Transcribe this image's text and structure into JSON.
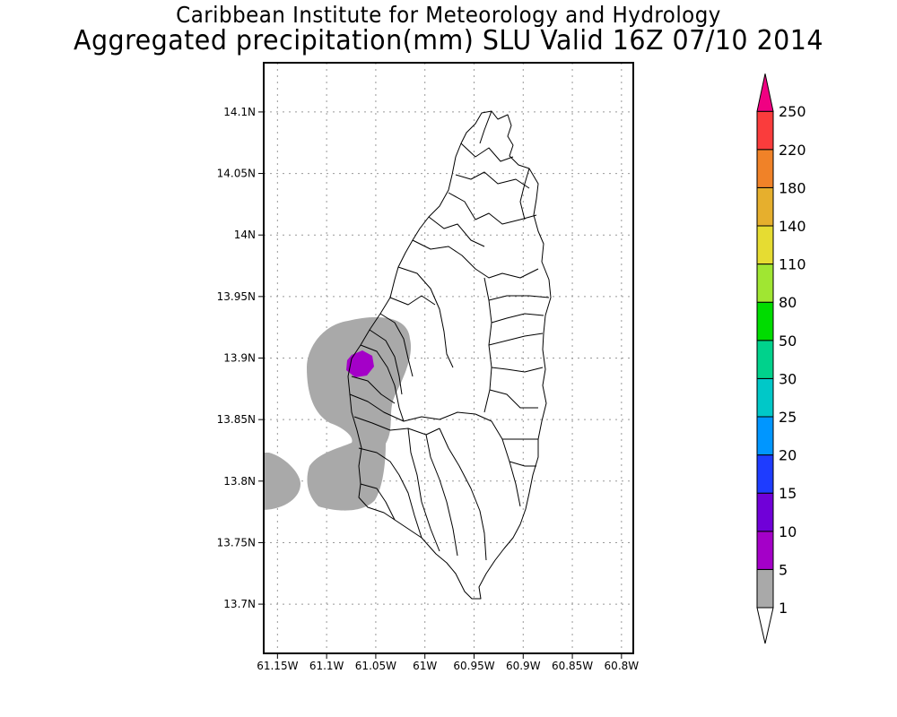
{
  "title": {
    "line1": "Caribbean Institute for Meteorology and Hydrology",
    "line2": "Aggregated precipitation(mm) SLU Valid 16Z 07/10 2014"
  },
  "map": {
    "lat_labels": [
      "14.1N",
      "14.05N",
      "14N",
      "13.95N",
      "13.9N",
      "13.85N",
      "13.8N",
      "13.75N",
      "13.7N"
    ],
    "lon_labels": [
      "61.15W",
      "61.1W",
      "61.05W",
      "61W",
      "60.95W",
      "60.9W",
      "60.85W",
      "60.8W"
    ],
    "lat_values": [
      14.1,
      14.05,
      14.0,
      13.95,
      13.9,
      13.85,
      13.8,
      13.75,
      13.7
    ],
    "lon_values": [
      -61.15,
      -61.1,
      -61.05,
      -61.0,
      -60.95,
      -60.9,
      -60.85,
      -60.8
    ],
    "lat_range": [
      13.66,
      14.14
    ],
    "lon_range": [
      -61.164,
      -60.788
    ],
    "grid": true,
    "precip_areas": [
      {
        "class": "1-5 mm",
        "color": "#a9a9a9",
        "location": "west coast, approx. 13.79N-13.94N, 61.10W-61.03W"
      },
      {
        "class": "1-5 mm",
        "color": "#a9a9a9",
        "location": "offshore west, approx. 13.80N, 61.16W-61.13W"
      },
      {
        "class": "5-10 mm",
        "color": "#a400c8",
        "location": "approx. 13.90N, 61.065W"
      }
    ]
  },
  "colorbar": {
    "levels": [
      "1",
      "5",
      "10",
      "15",
      "20",
      "25",
      "30",
      "50",
      "80",
      "110",
      "140",
      "180",
      "220",
      "250"
    ],
    "colors": [
      "#a9a9a9",
      "#a400c8",
      "#7000d8",
      "#1e3cff",
      "#0096ff",
      "#00c8c8",
      "#00d28c",
      "#00dc00",
      "#a0e632",
      "#e6dc32",
      "#e6af2d",
      "#f08228",
      "#fa3c3c",
      "#f00082"
    ],
    "below_color": "#ffffff",
    "above_color": "#f00082"
  }
}
